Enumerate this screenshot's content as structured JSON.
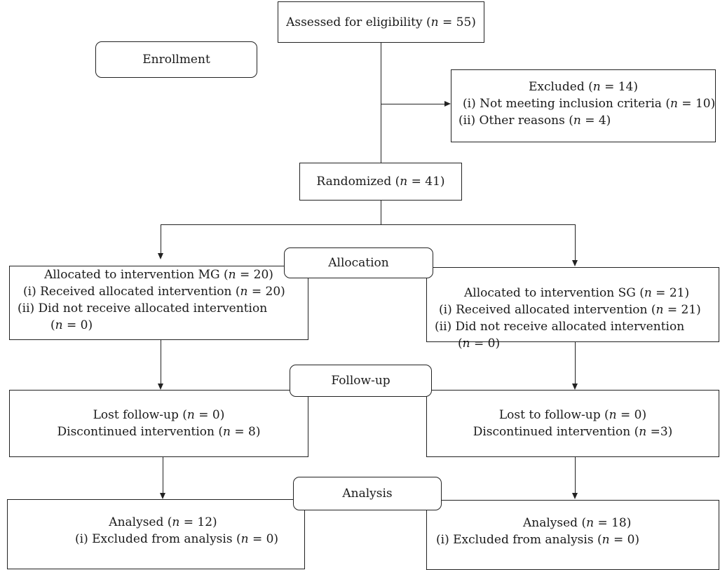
{
  "assessed": {
    "text": "Assessed for eligibility (",
    "n": "n",
    "val": " = 55)"
  },
  "enrollment": {
    "label": "Enrollment"
  },
  "excluded": {
    "title_pre": "Excluded (",
    "n": "n",
    "title_post": " = 14)",
    "item1_prefix": "(i)",
    "item1_text": "Not meeting inclusion criteria (",
    "item1_n": "n",
    "item1_post": " = 10)",
    "item2_prefix": "(ii)",
    "item2_text": "Other reasons (",
    "item2_n": "n",
    "item2_post": " = 4)"
  },
  "randomized": {
    "text": "Randomized (",
    "n": "n",
    "val": " = 41)"
  },
  "allocation": {
    "label": "Allocation"
  },
  "alloc_mg": {
    "title_pre": "Allocated to intervention MG (",
    "n": "n",
    "title_post": " = 20)",
    "item1_prefix": "(i)",
    "item1_text": "Received allocated intervention (",
    "item1_n": "n",
    "item1_post": " = 20)",
    "item2_prefix": "(ii)",
    "item2_text": "Did not receive allocated intervention",
    "item2_cont_pre": "(",
    "item2_cont_n": "n",
    "item2_cont_post": " = 0)"
  },
  "alloc_sg": {
    "title_pre": "Allocated to intervention SG (",
    "n": "n",
    "title_post": " = 21)",
    "item1_prefix": "(i)",
    "item1_text": "Received allocated intervention (",
    "item1_n": "n",
    "item1_post": " = 21)",
    "item2_prefix": "(ii)",
    "item2_text": "Did not receive allocated intervention",
    "item2_cont_pre": "(",
    "item2_cont_n": "n",
    "item2_cont_post": " = 0)"
  },
  "followup": {
    "label": "Follow-up"
  },
  "fu_mg": {
    "line1_pre": "Lost follow-up (",
    "line1_n": "n",
    "line1_post": " = 0)",
    "line2_pre": "Discontinued intervention (",
    "line2_n": "n",
    "line2_post": " = 8)"
  },
  "fu_sg": {
    "line1_pre": "Lost to follow-up (",
    "line1_n": "n",
    "line1_post": " = 0)",
    "line2_pre": "Discontinued intervention (",
    "line2_n": "n",
    "line2_post": " =3)"
  },
  "analysis": {
    "label": "Analysis"
  },
  "an_mg": {
    "line1_pre": "Analysed (",
    "line1_n": "n",
    "line1_post": " = 12)",
    "line2_prefix": "(i)",
    "line2_pre": "Excluded from analysis (",
    "line2_n": "n",
    "line2_post": " = 0)"
  },
  "an_sg": {
    "line1_pre": "Analysed (",
    "line1_n": "n",
    "line1_post": " = 18)",
    "line2_prefix": "(i)",
    "line2_pre": "Excluded from analysis (",
    "line2_n": "n",
    "line2_post": " = 0)"
  }
}
